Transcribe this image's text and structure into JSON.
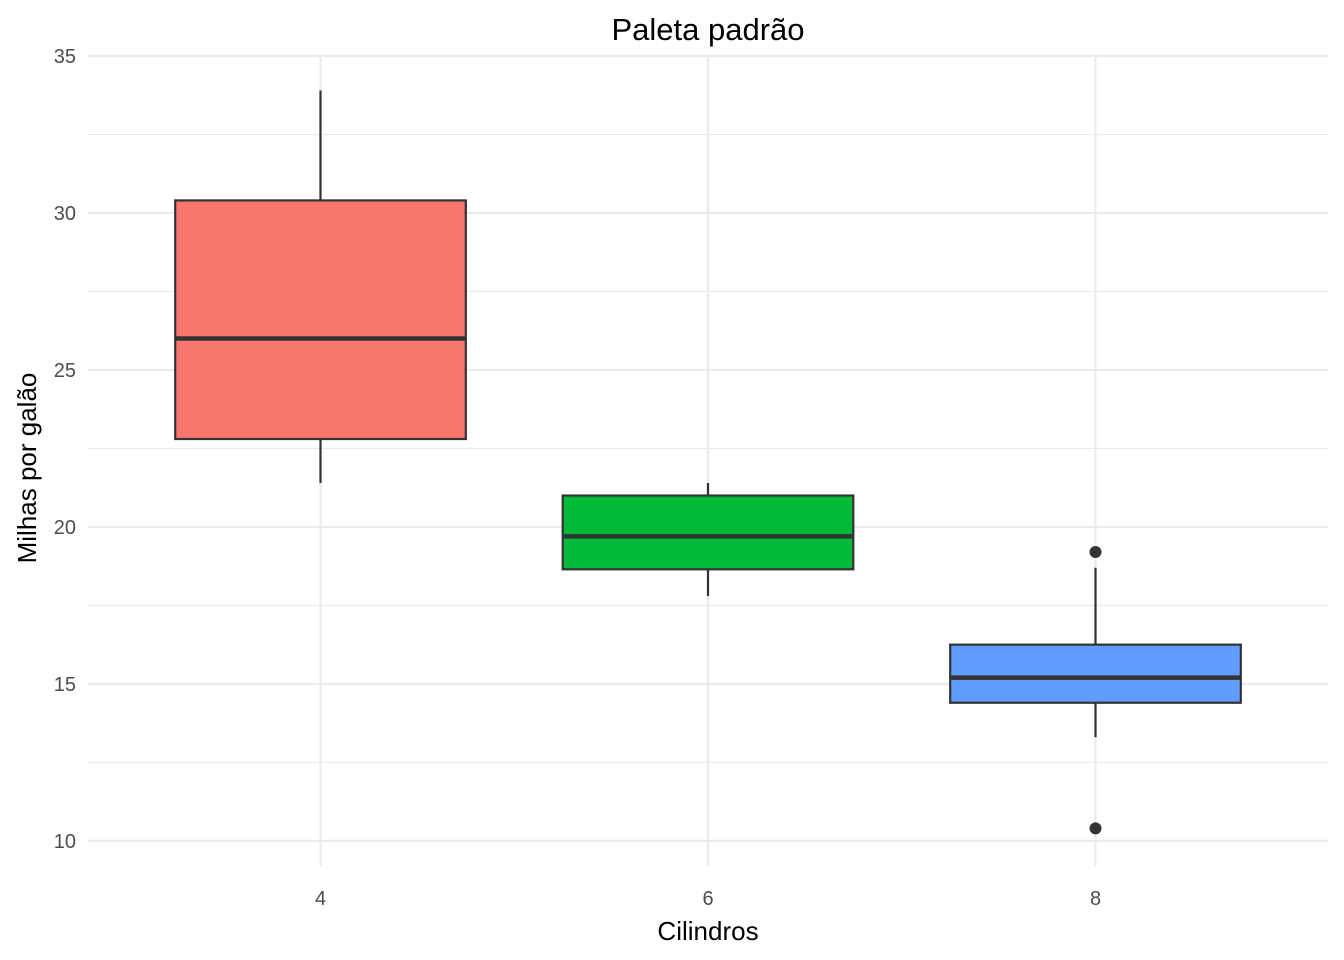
{
  "chart_data": {
    "type": "boxplot",
    "title": "Paleta padrão",
    "xlabel": "Cilindros",
    "ylabel": "Milhas por galão",
    "categories": [
      "4",
      "6",
      "8"
    ],
    "ylim": [
      9.2,
      35.0
    ],
    "yticks": [
      10,
      15,
      20,
      25,
      30,
      35
    ],
    "ytick_labels": [
      "10",
      "15",
      "20",
      "25",
      "30",
      "35"
    ],
    "grid": true,
    "legend": "none",
    "boxes": [
      {
        "category": "4",
        "color": "#F8766D",
        "whisker_low": 21.4,
        "q1": 22.8,
        "median": 26.0,
        "q3": 30.4,
        "whisker_high": 33.9,
        "outliers": []
      },
      {
        "category": "6",
        "color": "#00BA38",
        "whisker_low": 17.8,
        "q1": 18.65,
        "median": 19.7,
        "q3": 21.0,
        "whisker_high": 21.4,
        "outliers": []
      },
      {
        "category": "8",
        "color": "#619CFF",
        "whisker_low": 13.3,
        "q1": 14.4,
        "median": 15.2,
        "q3": 16.25,
        "whisker_high": 18.7,
        "outliers": [
          19.2,
          10.4
        ]
      }
    ]
  }
}
